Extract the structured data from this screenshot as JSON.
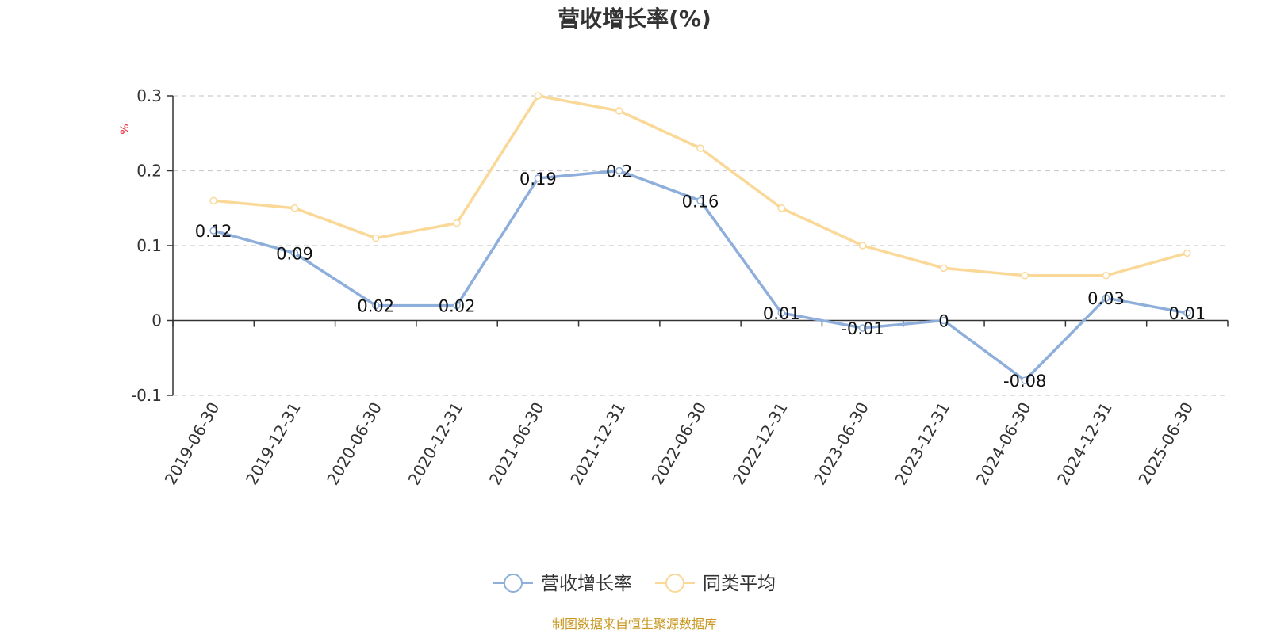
{
  "chart_data": {
    "type": "line",
    "title": "营收增长率(%)",
    "ylabel": "%",
    "xlabel": "",
    "categories": [
      "2019-06-30",
      "2019-12-31",
      "2020-06-30",
      "2020-12-31",
      "2021-06-30",
      "2021-12-31",
      "2022-06-30",
      "2022-12-31",
      "2023-06-30",
      "2023-12-31",
      "2024-06-30",
      "2024-12-31",
      "2025-06-30"
    ],
    "series": [
      {
        "name": "营收增长率",
        "color": "#8eaedb",
        "values": [
          0.12,
          0.09,
          0.02,
          0.02,
          0.19,
          0.2,
          0.16,
          0.01,
          -0.01,
          0,
          -0.08,
          0.03,
          0.01
        ],
        "value_labels": [
          "0.12",
          "0.09",
          "0.02",
          "0.02",
          "0.19",
          "0.2",
          "0.16",
          "0.01",
          "-0.01",
          "0",
          "-0.08",
          "0.03",
          "0.01"
        ]
      },
      {
        "name": "同类平均",
        "color": "#fad898",
        "values": [
          0.16,
          0.15,
          0.11,
          0.13,
          0.3,
          0.28,
          0.23,
          0.15,
          0.1,
          0.07,
          0.06,
          0.06,
          0.09
        ]
      }
    ],
    "ylim": [
      -0.1,
      0.3
    ],
    "yticks": [
      -0.1,
      0,
      0.1,
      0.2,
      0.3
    ],
    "ytick_labels": [
      "-0.1",
      "0",
      "0.1",
      "0.2",
      "0.3"
    ],
    "grid": true,
    "legend_position": "bottom-center",
    "source": "制图数据来自恒生聚源数据库",
    "colors": {
      "ylabel": "#e8232b",
      "source": "#c8961e",
      "title": "#333333",
      "axis": "#333333",
      "grid": "#cccccc"
    }
  }
}
